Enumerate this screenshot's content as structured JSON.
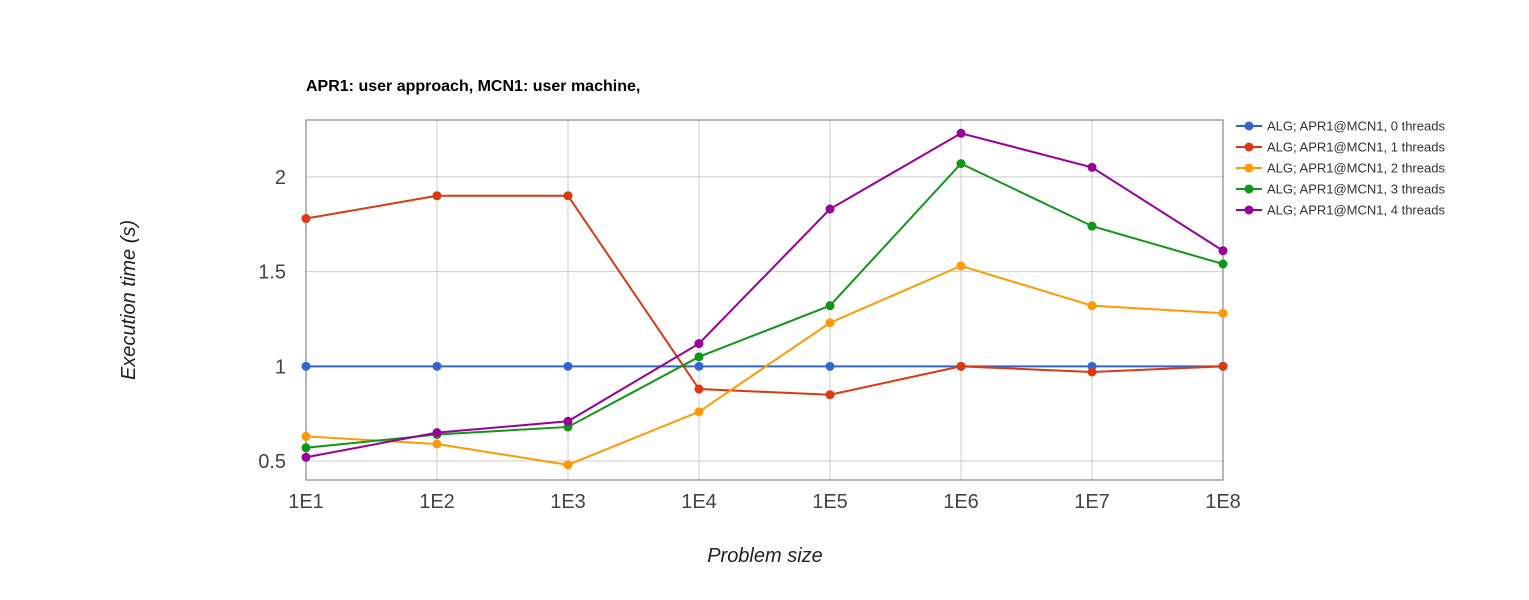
{
  "chart_data": {
    "type": "line",
    "title": "APR1: user approach, MCN1: user machine,",
    "xlabel": "Problem size",
    "ylabel": "Execution time (s)",
    "categories": [
      "1E1",
      "1E2",
      "1E3",
      "1E4",
      "1E5",
      "1E6",
      "1E7",
      "1E8"
    ],
    "ylim": [
      0.4,
      2.3
    ],
    "yticks": [
      0.5,
      1,
      1.5,
      2
    ],
    "ytick_labels": [
      "0.5",
      "1",
      "1.5",
      "2"
    ],
    "grid": true,
    "legend_position": "right",
    "series": [
      {
        "name": "ALG; APR1@MCN1, 0 threads",
        "color": "#3366cc",
        "values": [
          1.0,
          1.0,
          1.0,
          1.0,
          1.0,
          1.0,
          1.0,
          1.0
        ]
      },
      {
        "name": "ALG; APR1@MCN1, 1 threads",
        "color": "#dc3912",
        "values": [
          1.78,
          1.9,
          1.9,
          0.88,
          0.85,
          1.0,
          0.97,
          1.0
        ]
      },
      {
        "name": "ALG; APR1@MCN1, 2 threads",
        "color": "#ff9900",
        "values": [
          0.63,
          0.59,
          0.48,
          0.76,
          1.23,
          1.53,
          1.32,
          1.28
        ]
      },
      {
        "name": "ALG; APR1@MCN1, 3 threads",
        "color": "#109618",
        "values": [
          0.57,
          0.64,
          0.68,
          1.05,
          1.32,
          2.07,
          1.74,
          1.54
        ]
      },
      {
        "name": "ALG; APR1@MCN1, 4 threads",
        "color": "#990099",
        "values": [
          0.52,
          0.65,
          0.71,
          1.12,
          1.83,
          2.23,
          2.05,
          1.61
        ]
      }
    ]
  }
}
